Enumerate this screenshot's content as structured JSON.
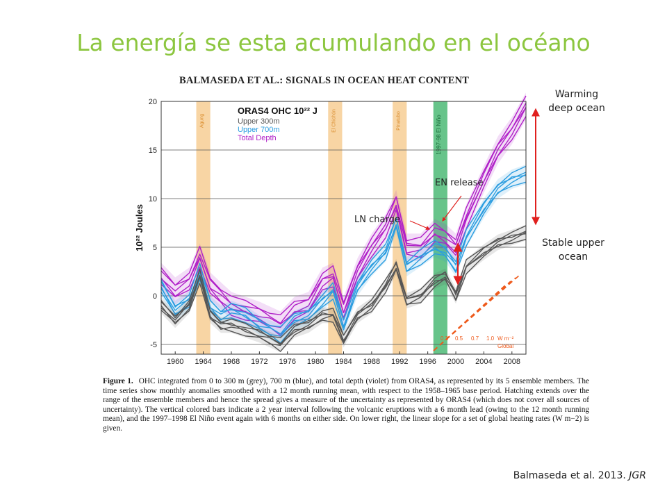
{
  "slide": {
    "title": "La energía se esta acumulando en el océano",
    "citation_text": "Balmaseda et al. 2013.",
    "citation_journal": "JGR"
  },
  "figure_header": "BALMASEDA ET AL.: SIGNALS IN OCEAN HEAT CONTENT",
  "annotations": {
    "warming_deep_line1": "Warming",
    "warming_deep_line2": "deep ocean",
    "stable_upper_line1": "Stable upper",
    "stable_upper_line2": "ocean",
    "en_release": "EN release",
    "ln_charge": "LN charge"
  },
  "caption": {
    "label": "Figure 1.",
    "text": "OHC integrated from 0 to 300 m (grey), 700 m (blue), and total depth (violet) from ORAS4, as represented by its 5 ensemble members. The time series show monthly anomalies smoothed with a 12 month running mean, with respect to the 1958–1965 base period. Hatching extends over the range of the ensemble members and hence the spread gives a measure of the uncertainty as represented by ORAS4 (which does not cover all sources of uncertainty). The vertical colored bars indicate a 2 year interval following the volcanic eruptions with a 6 month lead (owing to the 12 month running mean), and the 1997–1998 El Niño event again with 6 months on either side. On lower right, the linear slope for a set of global heating rates (W m−2) is given."
  },
  "colors": {
    "title": "#8cc63f",
    "upper300": "#555555",
    "upper700": "#2b9de0",
    "total": "#b020c8",
    "volcanic_bar": "#f8d5a4",
    "elnino_bar": "#67c48a",
    "arrow": "#e0201e",
    "heating_lines": "#ee5a1c"
  },
  "chart_data": {
    "type": "line",
    "legend_title": "ORAS4  OHC",
    "legend_unit": "10²² J",
    "ylabel": "10²² Joules",
    "xlim": [
      1958,
      2010
    ],
    "ylim": [
      -6,
      20
    ],
    "y_ticks": [
      -5,
      0,
      5,
      10,
      15,
      20
    ],
    "x_ticks": [
      1960,
      1964,
      1968,
      1972,
      1976,
      1980,
      1984,
      1988,
      1992,
      1996,
      2000,
      2004,
      2008
    ],
    "grid": "horizontal",
    "legend_position": "top-left",
    "volcanic_bars": [
      {
        "label": "Agung",
        "start": 1963.0,
        "end": 1965.0
      },
      {
        "label": "El Chichón",
        "start": 1981.8,
        "end": 1983.8
      },
      {
        "label": "Pinatubo",
        "start": 1991.0,
        "end": 1993.0
      }
    ],
    "elnino_bar": {
      "label": "1997-98 El Niño",
      "start": 1996.8,
      "end": 1998.8
    },
    "series": [
      {
        "name": "Upper 300m",
        "x": [
          1958,
          1960,
          1962,
          1963.5,
          1965,
          1966.5,
          1968,
          1970,
          1972,
          1973.5,
          1975,
          1977,
          1979,
          1981,
          1982.5,
          1984,
          1986,
          1988,
          1990,
          1991.5,
          1993,
          1995,
          1997,
          1998.5,
          2000,
          2001.5,
          2004,
          2006,
          2008,
          2010
        ],
        "y": [
          -1,
          -2.5,
          -1,
          2,
          -2,
          -3,
          -3,
          -3.5,
          -4,
          -4.5,
          -5,
          -3.5,
          -3,
          -2,
          -2,
          -4.5,
          -2,
          -1,
          1,
          3,
          -0.5,
          0,
          1.5,
          2,
          0,
          3,
          4.5,
          5.5,
          6,
          6.5
        ]
      },
      {
        "name": "Upper 700m",
        "x": [
          1958,
          1960,
          1962,
          1963.5,
          1965,
          1966.5,
          1968,
          1970,
          1972,
          1973.5,
          1975,
          1977,
          1979,
          1981,
          1982.5,
          1984,
          1986,
          1988,
          1990,
          1991.5,
          1993,
          1995,
          1997,
          1998.5,
          2000,
          2001.5,
          2004,
          2006,
          2008,
          2010
        ],
        "y": [
          1,
          -1.5,
          -0.5,
          2.5,
          -1,
          -2,
          -1.5,
          -2,
          -3,
          -3.5,
          -4,
          -2.5,
          -2,
          -0.5,
          0.5,
          -3,
          1,
          3,
          4.5,
          7.5,
          3,
          4,
          5,
          4.5,
          3,
          6,
          9,
          11,
          12,
          12.5
        ]
      },
      {
        "name": "Total Depth",
        "x": [
          1958,
          1960,
          1962,
          1963.5,
          1965,
          1966.5,
          1968,
          1970,
          1972,
          1973.5,
          1975,
          1977,
          1979,
          1981,
          1982.5,
          1984,
          1986,
          1988,
          1990,
          1991.5,
          1993,
          1995,
          1997,
          1998.5,
          2000,
          2001.5,
          2004,
          2006,
          2008,
          2010
        ],
        "y": [
          2,
          0.5,
          1.5,
          4,
          1,
          0,
          -1,
          -1.5,
          -2,
          -2.5,
          -3,
          -1.5,
          -1,
          1.5,
          2,
          -1.5,
          2.5,
          5,
          7,
          9.5,
          5,
          5,
          6.5,
          6,
          5,
          8,
          12,
          15,
          17,
          19.5
        ]
      }
    ],
    "heating_rates": [
      "0.3",
      "0.5",
      "0.7",
      "1.0",
      "W m⁻²",
      "Global"
    ]
  }
}
